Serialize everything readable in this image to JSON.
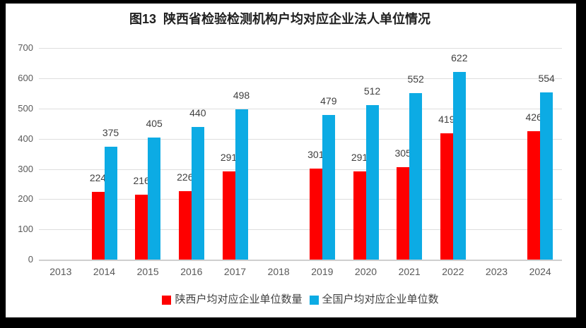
{
  "window": {
    "frame_color": "#000000",
    "background_color": "#ffffff"
  },
  "chart_data": {
    "type": "bar",
    "title": "图13  陕西省检验检测机构户均对应企业法人单位情况",
    "categories": [
      "2013",
      "2014",
      "2015",
      "2016",
      "2017",
      "2018",
      "2019",
      "2020",
      "2021",
      "2022",
      "2023",
      "2024"
    ],
    "series": [
      {
        "name": "陕西户均对应企业单位数量",
        "color": "#fe0000",
        "values": [
          null,
          224,
          216,
          226,
          291,
          null,
          301,
          291,
          305,
          419,
          null,
          426
        ]
      },
      {
        "name": "全国户均对应企业单位数",
        "color": "#0cabe4",
        "values": [
          null,
          375,
          405,
          440,
          498,
          null,
          479,
          512,
          552,
          622,
          null,
          554
        ]
      }
    ],
    "xlabel": "",
    "ylabel": "",
    "ylim": [
      0,
      700
    ],
    "yticks": [
      0,
      100,
      200,
      300,
      400,
      500,
      600,
      700
    ],
    "grid": true,
    "data_labels": true,
    "legend_position": "bottom",
    "colors": {
      "gridline": "#dedede",
      "zero_line": "#cfcfcf",
      "tick_text": "#595959",
      "value_label_text": "#404040",
      "title_text": "#1f1f1f"
    }
  }
}
